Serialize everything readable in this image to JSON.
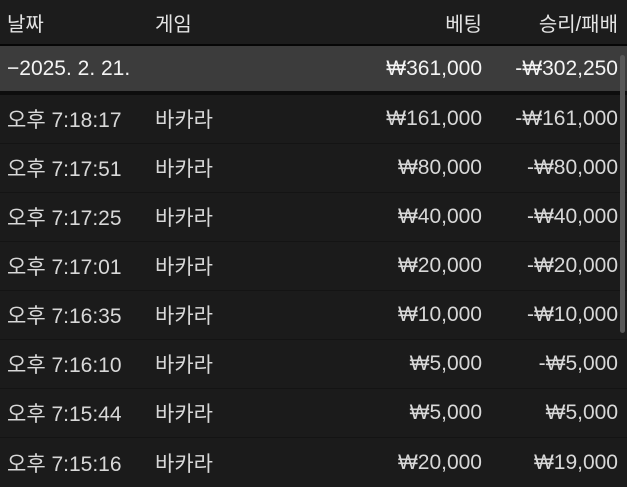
{
  "table": {
    "columns": [
      {
        "key": "date",
        "label": "날짜"
      },
      {
        "key": "game",
        "label": "게임"
      },
      {
        "key": "bet",
        "label": "베팅"
      },
      {
        "key": "result",
        "label": "승리/패배"
      }
    ],
    "summary": {
      "date": "−2025. 2. 21.",
      "bet": "₩361,000",
      "result": "-₩302,250"
    },
    "rows": [
      {
        "date": "오후 7:18:17",
        "game": "바카라",
        "bet": "₩161,000",
        "result": "-₩161,000"
      },
      {
        "date": "오후 7:17:51",
        "game": "바카라",
        "bet": "₩80,000",
        "result": "-₩80,000"
      },
      {
        "date": "오후 7:17:25",
        "game": "바카라",
        "bet": "₩40,000",
        "result": "-₩40,000"
      },
      {
        "date": "오후 7:17:01",
        "game": "바카라",
        "bet": "₩20,000",
        "result": "-₩20,000"
      },
      {
        "date": "오후 7:16:35",
        "game": "바카라",
        "bet": "₩10,000",
        "result": "-₩10,000"
      },
      {
        "date": "오후 7:16:10",
        "game": "바카라",
        "bet": "₩5,000",
        "result": "-₩5,000"
      },
      {
        "date": "오후 7:15:44",
        "game": "바카라",
        "bet": "₩5,000",
        "result": "₩5,000"
      },
      {
        "date": "오후 7:15:16",
        "game": "바카라",
        "bet": "₩20,000",
        "result": "₩19,000"
      }
    ]
  },
  "colors": {
    "background": "#1b1b1b",
    "summary_row_background": "#3c3c3c",
    "header_text": "#e4e4e4",
    "row_text": "#d8d8d8",
    "scrollbar": "#575757"
  }
}
